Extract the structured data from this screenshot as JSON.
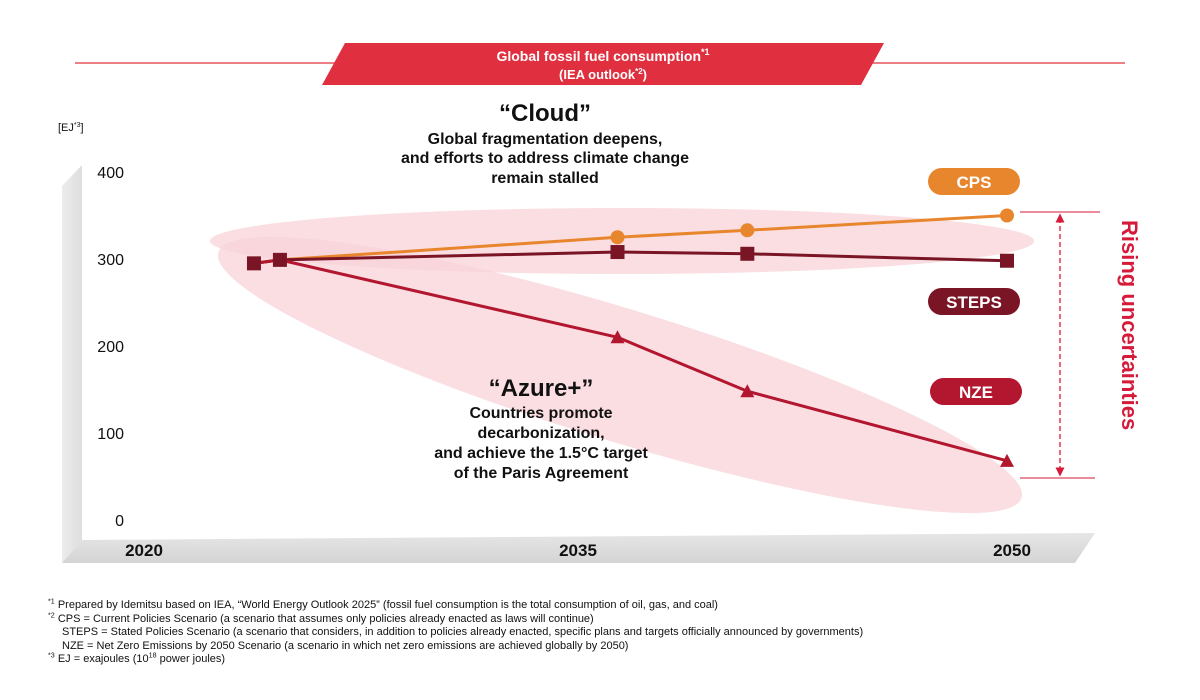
{
  "header": {
    "title": "Global fossil fuel consumption",
    "title_sup": "*1",
    "subtitle": "(IEA outlook",
    "subtitle_sup": "*2",
    "subtitle_end": ")"
  },
  "colors": {
    "banner": "#e0303f",
    "cps": "#e8862d",
    "steps": "#7a1526",
    "nze": "#b3162f",
    "accent_red": "#d51a3a",
    "halo": "#f8d3d8"
  },
  "annotations": {
    "cloud": {
      "title": "“Cloud”",
      "lines": [
        "Global fragmentation deepens,",
        "and efforts to address climate change",
        "remain stalled"
      ]
    },
    "azure": {
      "title": "“Azure+”",
      "lines": [
        "Countries promote",
        "decarbonization,",
        "and achieve the 1.5°C target",
        "of the Paris Agreement"
      ]
    },
    "uncertainty": "Rising uncertainties"
  },
  "chart_data": {
    "type": "line",
    "ylabel": "[EJ",
    "ylabel_sup": "*3",
    "ylabel_end": "]",
    "ylim": [
      0,
      400
    ],
    "yticks": [
      0,
      100,
      200,
      300,
      400
    ],
    "xlim": [
      2020,
      2050
    ],
    "xtick_labels": [
      "2020",
      "2035",
      "2050"
    ],
    "xtick_values": [
      2020,
      2035,
      2050
    ],
    "legend_position": "right",
    "series": [
      {
        "name": "CPS",
        "key": "cps",
        "marker": "circle",
        "points": [
          [
            2021,
            295
          ],
          [
            2022,
            299
          ],
          [
            2035,
            325
          ],
          [
            2040,
            333
          ],
          [
            2050,
            350
          ]
        ],
        "markers_at": [
          2035,
          2040,
          2050
        ]
      },
      {
        "name": "STEPS",
        "key": "steps",
        "marker": "square",
        "points": [
          [
            2021,
            295
          ],
          [
            2022,
            299
          ],
          [
            2035,
            308
          ],
          [
            2040,
            306
          ],
          [
            2050,
            298
          ]
        ],
        "markers_at": [
          2021,
          2022,
          2035,
          2040,
          2050
        ]
      },
      {
        "name": "NZE",
        "key": "nze",
        "marker": "triangle",
        "points": [
          [
            2021,
            295
          ],
          [
            2022,
            299
          ],
          [
            2035,
            210
          ],
          [
            2040,
            148
          ],
          [
            2050,
            68
          ]
        ],
        "markers_at": [
          2035,
          2040,
          2050
        ]
      }
    ]
  },
  "footnotes": [
    {
      "mark": "*1",
      "text": " Prepared by Idemitsu based on IEA, “World Energy Outlook 2025” (fossil fuel consumption is the total consumption of oil, gas, and coal)"
    },
    {
      "mark": "*2",
      "text": " CPS = Current Policies Scenario (a scenario that assumes only policies already enacted as laws will continue)"
    },
    {
      "mark": "",
      "text": "STEPS = Stated Policies Scenario (a scenario that considers, in addition to policies already enacted, specific plans and targets officially announced by governments)"
    },
    {
      "mark": "",
      "text": "NZE = Net Zero Emissions by 2050 Scenario (a scenario in which net zero emissions are achieved globally by 2050)"
    },
    {
      "mark": "*3",
      "text": " EJ = exajoules (10",
      "sup": "18",
      "text_end": " power joules)"
    }
  ]
}
